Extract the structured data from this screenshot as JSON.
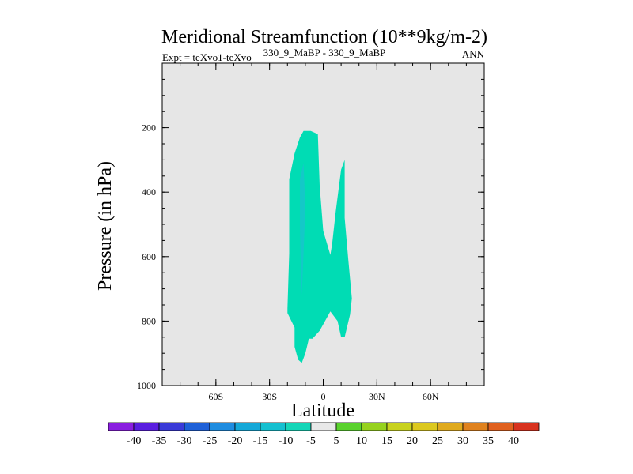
{
  "chart_data": {
    "type": "contour",
    "title": "Meridional Streamfunction (10**9kg/m-2)",
    "subtitle_left": "Expt = teXvo1-teXvo",
    "subtitle_center": "330_9_MaBP - 330_9_MaBP",
    "subtitle_right": "ANN",
    "xlabel": "Latitude",
    "ylabel": "Pressure (in hPa)",
    "xlim": [
      -90,
      90
    ],
    "ylim": [
      1000,
      0
    ],
    "x_ticks": [
      {
        "value": -60,
        "label": "60S"
      },
      {
        "value": -30,
        "label": "30S"
      },
      {
        "value": 0,
        "label": "0"
      },
      {
        "value": 30,
        "label": "30N"
      },
      {
        "value": 60,
        "label": "60N"
      }
    ],
    "y_ticks": [
      {
        "value": 200,
        "label": "200"
      },
      {
        "value": 400,
        "label": "400"
      },
      {
        "value": 600,
        "label": "600"
      },
      {
        "value": 800,
        "label": "800"
      },
      {
        "value": 1000,
        "label": "1000"
      }
    ],
    "background_color": "#e6e6e6",
    "colorbar": {
      "labels": [
        "-40",
        "-35",
        "-30",
        "-25",
        "-20",
        "-15",
        "-10",
        "-5",
        "5",
        "10",
        "15",
        "20",
        "25",
        "30",
        "35",
        "40"
      ],
      "colors": [
        "#8a1ee0",
        "#5a1ee0",
        "#3a3ad8",
        "#1e60d8",
        "#1e8ce0",
        "#14a8d8",
        "#14c0d0",
        "#14d6b8",
        "#e8e8e8",
        "#5ad22e",
        "#96d21e",
        "#c8d21e",
        "#dcc81e",
        "#e0aa1e",
        "#e0821e",
        "#e0601e",
        "#d8321e"
      ]
    },
    "regions": [
      {
        "name": "band-minus5-main",
        "level": "-5",
        "color": "#00dcb4",
        "polygon": [
          [
            -20,
            775
          ],
          [
            -20,
            760
          ],
          [
            -19,
            590
          ],
          [
            -19,
            480
          ],
          [
            -19,
            360
          ],
          [
            -16,
            280
          ],
          [
            -13,
            230
          ],
          [
            -11,
            210
          ],
          [
            -7,
            210
          ],
          [
            -3,
            220
          ],
          [
            -2,
            380
          ],
          [
            0,
            520
          ],
          [
            4,
            595
          ],
          [
            5,
            560
          ],
          [
            7,
            460
          ],
          [
            10,
            330
          ],
          [
            12,
            300
          ],
          [
            12,
            480
          ],
          [
            14,
            610
          ],
          [
            16,
            730
          ],
          [
            15,
            780
          ],
          [
            12,
            850
          ],
          [
            10,
            850
          ],
          [
            8,
            800
          ],
          [
            4,
            770
          ],
          [
            -2,
            830
          ],
          [
            -6,
            855
          ],
          [
            -8,
            855
          ],
          [
            -10,
            900
          ],
          [
            -12,
            930
          ],
          [
            -14,
            920
          ],
          [
            -16,
            880
          ],
          [
            -16,
            820
          ]
        ]
      },
      {
        "name": "band-minus10-core",
        "level": "-10",
        "color": "#14c8c8",
        "polygon": [
          [
            -13,
            360
          ],
          [
            -11,
            310
          ],
          [
            -10,
            450
          ],
          [
            -11,
            590
          ],
          [
            -12,
            720
          ],
          [
            -12.5,
            630
          ],
          [
            -13,
            520
          ]
        ]
      }
    ]
  }
}
